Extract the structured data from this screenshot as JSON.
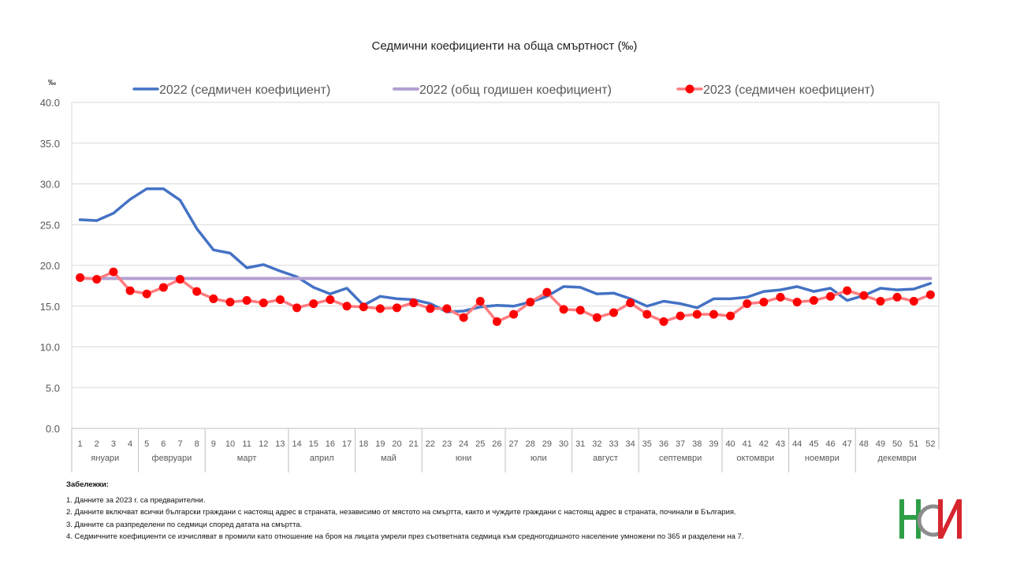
{
  "chart_data": {
    "type": "line",
    "title": "Седмични коефициенти на обща смъртност (‰)",
    "ylabel": "‰",
    "ylim": [
      0,
      40
    ],
    "yticks": [
      "0.0",
      "5.0",
      "10.0",
      "15.0",
      "20.0",
      "25.0",
      "30.0",
      "35.0",
      "40.0"
    ],
    "grid": true,
    "legend_position": "top",
    "categories": [
      "1",
      "2",
      "3",
      "4",
      "5",
      "6",
      "7",
      "8",
      "9",
      "10",
      "11",
      "12",
      "13",
      "14",
      "15",
      "16",
      "17",
      "18",
      "19",
      "20",
      "21",
      "22",
      "23",
      "24",
      "25",
      "26",
      "27",
      "28",
      "29",
      "30",
      "31",
      "32",
      "33",
      "34",
      "35",
      "36",
      "37",
      "38",
      "39",
      "40",
      "41",
      "42",
      "43",
      "44",
      "45",
      "46",
      "47",
      "48",
      "49",
      "50",
      "51",
      "52"
    ],
    "months": [
      {
        "label": "януари",
        "start": 1,
        "end": 4
      },
      {
        "label": "февруари",
        "start": 5,
        "end": 8
      },
      {
        "label": "март",
        "start": 9,
        "end": 13
      },
      {
        "label": "април",
        "start": 14,
        "end": 17
      },
      {
        "label": "май",
        "start": 18,
        "end": 21
      },
      {
        "label": "юни",
        "start": 22,
        "end": 26
      },
      {
        "label": "юли",
        "start": 27,
        "end": 30
      },
      {
        "label": "август",
        "start": 31,
        "end": 34
      },
      {
        "label": "септември",
        "start": 35,
        "end": 39
      },
      {
        "label": "октомври",
        "start": 40,
        "end": 43
      },
      {
        "label": "ноември",
        "start": 44,
        "end": 47
      },
      {
        "label": "декември",
        "start": 48,
        "end": 52
      }
    ],
    "series": [
      {
        "name": "2022 (седмичен коефициент)",
        "color": "#4472C4",
        "markers": false,
        "values": [
          25.6,
          25.5,
          26.4,
          28.1,
          29.4,
          29.4,
          28.0,
          24.5,
          21.9,
          21.5,
          19.7,
          20.1,
          19.3,
          18.6,
          17.3,
          16.5,
          17.2,
          15.1,
          16.2,
          15.9,
          15.8,
          15.3,
          14.3,
          14.4,
          14.9,
          15.1,
          15.0,
          15.5,
          16.2,
          17.4,
          17.3,
          16.5,
          16.6,
          15.9,
          15.0,
          15.6,
          15.3,
          14.8,
          15.9,
          15.9,
          16.1,
          16.8,
          17.0,
          17.4,
          16.8,
          17.2,
          15.7,
          16.3,
          17.2,
          17.0,
          17.1,
          17.8
        ]
      },
      {
        "name": "2022 (общ годишен коефициент)",
        "color": "#B4A0D2",
        "markers": false,
        "values": [
          18.4,
          18.4,
          18.4,
          18.4,
          18.4,
          18.4,
          18.4,
          18.4,
          18.4,
          18.4,
          18.4,
          18.4,
          18.4,
          18.4,
          18.4,
          18.4,
          18.4,
          18.4,
          18.4,
          18.4,
          18.4,
          18.4,
          18.4,
          18.4,
          18.4,
          18.4,
          18.4,
          18.4,
          18.4,
          18.4,
          18.4,
          18.4,
          18.4,
          18.4,
          18.4,
          18.4,
          18.4,
          18.4,
          18.4,
          18.4,
          18.4,
          18.4,
          18.4,
          18.4,
          18.4,
          18.4,
          18.4,
          18.4,
          18.4,
          18.4,
          18.4,
          18.4
        ]
      },
      {
        "name": "2023 (седмичен коефициент)",
        "color": "#FF7C80",
        "marker_color": "#FF0000",
        "markers": true,
        "values": [
          18.5,
          18.3,
          19.2,
          16.9,
          16.5,
          17.3,
          18.3,
          16.8,
          15.9,
          15.5,
          15.7,
          15.4,
          15.8,
          14.8,
          15.3,
          15.8,
          15.0,
          14.9,
          14.7,
          14.8,
          15.4,
          14.7,
          14.7,
          13.6,
          15.6,
          13.1,
          14.0,
          15.5,
          16.7,
          14.6,
          14.5,
          13.6,
          14.2,
          15.4,
          14.0,
          13.1,
          13.8,
          14.0,
          14.0,
          13.8,
          15.3,
          15.5,
          16.1,
          15.5,
          15.7,
          16.2,
          16.9,
          16.3,
          15.6,
          16.1,
          15.6,
          16.4
        ]
      }
    ]
  },
  "notes": {
    "title": "Забележки:",
    "items": [
      "1. Данните за 2023 г. са предварителни.",
      "2. Данните включват всички български граждани с настоящ адрес в страната, независимо от мястото на смъртта, както и чуждите граждани с настоящ адрес в страната, починали в България.",
      "3. Данните са разпределени по седмици според  датата на смъртта.",
      "4. Седмичните коефициенти се изчисляват в промили като отношение на броя на лицата умрели през съответната седмица към средногодишното население умножени по 365 и разделени на 7."
    ]
  },
  "logo": {
    "name": "НСИ logo",
    "colors": [
      "#2E9E47",
      "#D7262E",
      "#8C8C8C"
    ]
  }
}
